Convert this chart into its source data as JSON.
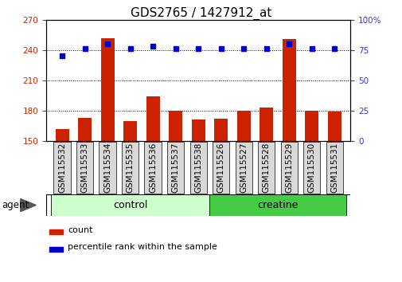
{
  "title": "GDS2765 / 1427912_at",
  "samples": [
    "GSM115532",
    "GSM115533",
    "GSM115534",
    "GSM115535",
    "GSM115536",
    "GSM115537",
    "GSM115538",
    "GSM115526",
    "GSM115527",
    "GSM115528",
    "GSM115529",
    "GSM115530",
    "GSM115531"
  ],
  "counts": [
    162,
    173,
    252,
    170,
    194,
    180,
    171,
    172,
    180,
    183,
    251,
    180,
    179
  ],
  "percentiles": [
    70,
    76,
    80,
    76,
    78,
    76,
    76,
    76,
    76,
    76,
    80,
    76,
    76
  ],
  "left_ylim": [
    150,
    270
  ],
  "right_ylim": [
    0,
    100
  ],
  "left_yticks": [
    150,
    180,
    210,
    240,
    270
  ],
  "right_yticks": [
    0,
    25,
    50,
    75,
    100
  ],
  "bar_color": "#cc2200",
  "dot_color": "#0000cc",
  "groups": [
    {
      "label": "control",
      "start": 0,
      "end": 7,
      "color": "#ccffcc"
    },
    {
      "label": "creatine",
      "start": 7,
      "end": 13,
      "color": "#44cc44"
    }
  ],
  "agent_label": "agent",
  "legend_count_label": "count",
  "legend_pct_label": "percentile rank within the sample",
  "title_fontsize": 11,
  "tick_fontsize": 7.5,
  "label_fontsize": 9,
  "bg_gray": "#d0d0d0",
  "right_tick_color": "#3333ff"
}
